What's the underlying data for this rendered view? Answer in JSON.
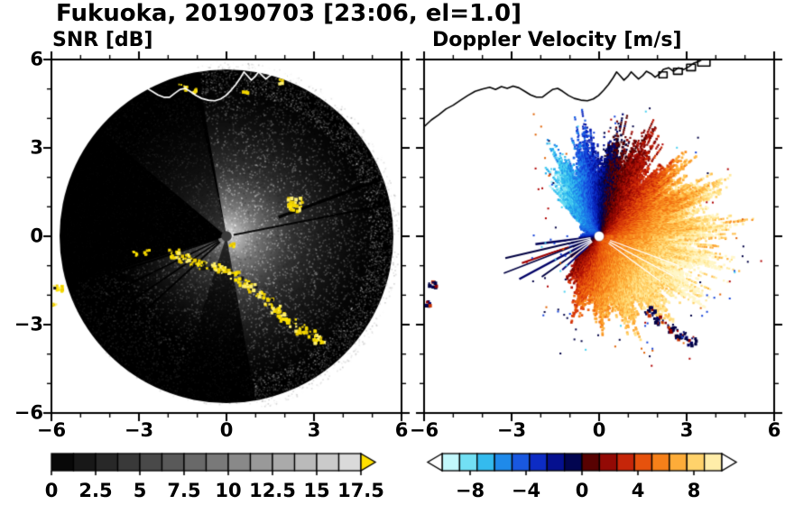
{
  "title": "Fukuoka, 20190703 [23:06, el=1.0]",
  "panels": [
    {
      "label": "SNR [dB]"
    },
    {
      "label": "Doppler Velocity [m/s]"
    }
  ],
  "axes": {
    "x_tick_labels": [
      "−6",
      "−3",
      "0",
      "3",
      "6"
    ],
    "x_tick_values": [
      -6,
      -3,
      0,
      3,
      6
    ],
    "y_tick_labels": [
      "6",
      "3",
      "0",
      "−3",
      "−6"
    ],
    "y_tick_values": [
      6,
      3,
      0,
      -3,
      -6
    ],
    "x_range": [
      -6,
      6
    ],
    "y_range": [
      -6,
      6
    ],
    "minor_tick_step": 1
  },
  "colorbars": [
    {
      "id": "snr",
      "tick_labels": [
        "0",
        "2.5",
        "5",
        "7.5",
        "10",
        "12.5",
        "15",
        "17.5"
      ],
      "tick_values": [
        0,
        2.5,
        5,
        7.5,
        10,
        12.5,
        15,
        17.5
      ],
      "min": 0,
      "max": 17.5,
      "n_blocks": 14,
      "palette": "grayscale-black-to-white",
      "over_arrow_color": "#FFE000"
    },
    {
      "id": "velocity",
      "tick_labels": [
        "−8",
        "−4",
        "0",
        "4",
        "8"
      ],
      "tick_values": [
        -8,
        -4,
        0,
        4,
        8
      ],
      "min": -10,
      "max": 10,
      "n_blocks": 16,
      "under_arrow_color": "#FFFFFF",
      "over_arrow_color": "#FFFFFF"
    }
  ],
  "chart_data": {
    "type": "heatmap",
    "station": "Fukuoka",
    "date": "20190703",
    "time": "23:06",
    "elevation_deg": 1.0,
    "coastline": [
      [
        -6.0,
        3.72
      ],
      [
        -5.75,
        3.95
      ],
      [
        -5.5,
        4.12
      ],
      [
        -5.25,
        4.32
      ],
      [
        -5.0,
        4.45
      ],
      [
        -4.75,
        4.62
      ],
      [
        -4.5,
        4.78
      ],
      [
        -4.25,
        4.92
      ],
      [
        -4.0,
        5.0
      ],
      [
        -3.75,
        5.06
      ],
      [
        -3.55,
        4.98
      ],
      [
        -3.35,
        5.08
      ],
      [
        -3.15,
        5.02
      ],
      [
        -2.95,
        5.1
      ],
      [
        -2.75,
        5.04
      ],
      [
        -2.55,
        4.92
      ],
      [
        -2.35,
        4.8
      ],
      [
        -2.15,
        4.72
      ],
      [
        -1.95,
        4.72
      ],
      [
        -1.78,
        4.85
      ],
      [
        -1.6,
        4.98
      ],
      [
        -1.42,
        5.02
      ],
      [
        -1.25,
        4.92
      ],
      [
        -1.05,
        4.78
      ],
      [
        -0.85,
        4.68
      ],
      [
        -0.62,
        4.62
      ],
      [
        -0.4,
        4.6
      ],
      [
        -0.2,
        4.66
      ],
      [
        -0.02,
        4.78
      ],
      [
        0.15,
        4.95
      ],
      [
        0.32,
        5.15
      ],
      [
        0.48,
        5.38
      ],
      [
        0.6,
        5.58
      ],
      [
        0.72,
        5.45
      ],
      [
        0.85,
        5.3
      ],
      [
        0.98,
        5.42
      ],
      [
        1.1,
        5.58
      ],
      [
        1.22,
        5.46
      ],
      [
        1.35,
        5.34
      ],
      [
        1.5,
        5.46
      ],
      [
        1.62,
        5.6
      ],
      [
        1.78,
        5.52
      ],
      [
        1.92,
        5.4
      ],
      [
        2.08,
        5.52
      ],
      [
        2.2,
        5.66
      ],
      [
        2.38,
        5.72
      ],
      [
        2.55,
        5.6
      ],
      [
        2.72,
        5.72
      ],
      [
        2.9,
        5.66
      ],
      [
        3.08,
        5.76
      ],
      [
        3.25,
        5.88
      ],
      [
        3.45,
        5.95
      ],
      [
        3.6,
        6.05
      ]
    ],
    "docks": [
      [
        2.05,
        5.38,
        0.28,
        0.2
      ],
      [
        2.55,
        5.5,
        0.3,
        0.2
      ],
      [
        3.0,
        5.62,
        0.3,
        0.22
      ],
      [
        3.38,
        5.78,
        0.42,
        0.22
      ]
    ],
    "panels": [
      {
        "name": "SNR",
        "units": "dB",
        "xlim": [
          -6,
          6
        ],
        "ylim": [
          -6,
          6
        ],
        "colorbar_range": [
          0,
          17.5
        ],
        "scan_radius": 5.72,
        "gray_max": 226,
        "features": {
          "bright_sector_deg": [
            -80,
            100
          ],
          "sw_wedge_deg": [
            197,
            252
          ],
          "nw_faint_deg": [
            102,
            140
          ],
          "s_faint_deg": [
            252,
            302
          ],
          "blocked_rays": [
            {
              "az": 11,
              "w": 2,
              "r0": 0.25,
              "r1": 5.7
            },
            {
              "az": 20,
              "w": 3.5,
              "r0": 1.9,
              "r1": 5.6
            },
            {
              "az": 198,
              "w": 2,
              "r0": 0.3,
              "r1": 4.2
            },
            {
              "az": 206,
              "w": 1.6,
              "r0": 0.3,
              "r1": 4.3
            },
            {
              "az": 214,
              "w": 1.6,
              "r0": 0.3,
              "r1": 4.2
            },
            {
              "az": 222,
              "w": 2,
              "r0": 0.3,
              "r1": 4.0
            }
          ],
          "clutter_blobs": [
            [
              -1.85,
              -0.55,
              0.18,
              16
            ],
            [
              -1.5,
              -0.72,
              0.18,
              16
            ],
            [
              -1.15,
              -0.85,
              0.18,
              16
            ],
            [
              -0.8,
              -0.95,
              0.18,
              16
            ],
            [
              -0.45,
              -1.02,
              0.18,
              16
            ],
            [
              -0.1,
              -1.12,
              0.18,
              16
            ],
            [
              0.22,
              -1.3,
              0.18,
              16
            ],
            [
              0.52,
              -1.5,
              0.18,
              16
            ],
            [
              0.82,
              -1.7,
              0.18,
              14
            ],
            [
              1.1,
              -1.95,
              0.16,
              12
            ],
            [
              1.38,
              -2.2,
              0.16,
              12
            ],
            [
              1.62,
              -2.42,
              0.18,
              14
            ],
            [
              1.88,
              -2.68,
              0.2,
              16
            ],
            [
              2.18,
              -2.92,
              0.2,
              16
            ],
            [
              2.52,
              -3.12,
              0.2,
              16
            ],
            [
              2.85,
              -3.32,
              0.2,
              16
            ],
            [
              3.12,
              -3.5,
              0.18,
              14
            ],
            [
              2.3,
              1.12,
              0.3,
              34
            ],
            [
              0.15,
              -0.25,
              0.1,
              7
            ],
            [
              -2.75,
              -0.5,
              0.12,
              7
            ],
            [
              -3.2,
              -0.55,
              0.1,
              5
            ],
            [
              -5.82,
              -1.7,
              0.16,
              12
            ],
            [
              -5.95,
              -2.3,
              0.1,
              6
            ],
            [
              -1.55,
              5.1,
              0.14,
              8
            ],
            [
              -1.15,
              4.98,
              0.1,
              6
            ],
            [
              0.6,
              4.9,
              0.09,
              5
            ],
            [
              1.85,
              5.3,
              0.1,
              5
            ]
          ],
          "center_dot_color": "#3A3A3A"
        }
      },
      {
        "name": "Doppler Velocity",
        "units": "m/s",
        "xlim": [
          -6,
          6
        ],
        "ylim": [
          -6,
          6
        ],
        "colorbar_range": [
          -10,
          10
        ],
        "zero_isodop_azimuths_deg": [
          80,
          212
        ],
        "max_speed": 8.6,
        "range_profile": [
          [
            0,
            4.1
          ],
          [
            20,
            4.3
          ],
          [
            40,
            3.8
          ],
          [
            55,
            3.1
          ],
          [
            70,
            3.7
          ],
          [
            85,
            3.0
          ],
          [
            100,
            3.2
          ],
          [
            115,
            2.9
          ],
          [
            130,
            2.4
          ],
          [
            145,
            0.9
          ],
          [
            160,
            0.55
          ],
          [
            175,
            0.5
          ],
          [
            190,
            0.9
          ],
          [
            205,
            1.05
          ],
          [
            220,
            1.1
          ],
          [
            235,
            1.7
          ],
          [
            250,
            2.5
          ],
          [
            265,
            2.8
          ],
          [
            280,
            3.0
          ],
          [
            295,
            3.2
          ],
          [
            310,
            3.4
          ],
          [
            325,
            3.7
          ],
          [
            345,
            3.95
          ],
          [
            360,
            4.1
          ]
        ],
        "west_streaks": [
          {
            "az": 187,
            "r0": 0.3,
            "r1": 2.2,
            "w": 2.4,
            "color": "#000055"
          },
          {
            "az": 193,
            "r0": 0.3,
            "r1": 3.3,
            "w": 2.0,
            "color": "#000041"
          },
          {
            "az": 199,
            "r0": 1.1,
            "r1": 2.8,
            "w": 2.2,
            "color": "#9E0000"
          },
          {
            "az": 201,
            "r0": 0.3,
            "r1": 3.5,
            "w": 1.6,
            "color": "#000041"
          },
          {
            "az": 208,
            "r0": 0.3,
            "r1": 3.1,
            "w": 2.4,
            "color": "#000066"
          },
          {
            "az": 215,
            "r0": 0.4,
            "r1": 2.4,
            "w": 2.0,
            "color": "#000041"
          },
          {
            "az": 222,
            "r0": 0.5,
            "r1": 1.7,
            "w": 2.0,
            "color": "#0A0A78"
          }
        ],
        "white_gaps": [
          {
            "az": 190,
            "r0": 0.3,
            "r1": 3.6,
            "w": 1.3
          },
          {
            "az": 197,
            "r0": 0.3,
            "r1": 3.6,
            "w": 1.3
          },
          {
            "az": 204.5,
            "r0": 0.3,
            "r1": 3.6,
            "w": 1.3
          },
          {
            "az": 211.5,
            "r0": 0.3,
            "r1": 3.6,
            "w": 1.3
          },
          {
            "az": 218.5,
            "r0": 0.3,
            "r1": 3.6,
            "w": 1.3
          },
          {
            "az": 340,
            "r0": 0.4,
            "r1": 2.9,
            "w": 1.2
          },
          {
            "az": 332,
            "r0": 0.4,
            "r1": 2.9,
            "w": 1.2
          },
          {
            "az": 324,
            "r0": 0.4,
            "r1": 2.6,
            "w": 1.2
          }
        ],
        "clutter_blobs": [
          [
            1.72,
            -2.5,
            0.18,
            16
          ],
          [
            2.02,
            -2.8,
            0.18,
            16
          ],
          [
            2.42,
            -3.05,
            0.2,
            18
          ],
          [
            2.78,
            -3.3,
            0.2,
            18
          ],
          [
            3.12,
            -3.52,
            0.18,
            14
          ],
          [
            -5.78,
            -1.6,
            0.14,
            10
          ],
          [
            -5.92,
            -2.25,
            0.1,
            7
          ]
        ],
        "velocity_stops": [
          [
            -10,
            "#E8FFFF"
          ],
          [
            -8.75,
            "#9BEFF7"
          ],
          [
            -7.5,
            "#49D1F0"
          ],
          [
            -6.25,
            "#1FA4EC"
          ],
          [
            -5,
            "#1F6FE8"
          ],
          [
            -3.75,
            "#1240D8"
          ],
          [
            -2.5,
            "#0717AF"
          ],
          [
            -1.25,
            "#03086E"
          ],
          [
            -0.02,
            "#020333"
          ],
          [
            0.02,
            "#3C0202"
          ],
          [
            1.25,
            "#750303"
          ],
          [
            2.5,
            "#B01007"
          ],
          [
            3.75,
            "#DB3B0B"
          ],
          [
            5,
            "#F0690F"
          ],
          [
            6.25,
            "#FB9623"
          ],
          [
            7.5,
            "#FFC14E"
          ],
          [
            8.75,
            "#FFE388"
          ],
          [
            10,
            "#FFF7C9"
          ]
        ],
        "center_dot_color": "#FFFFFF"
      }
    ]
  }
}
